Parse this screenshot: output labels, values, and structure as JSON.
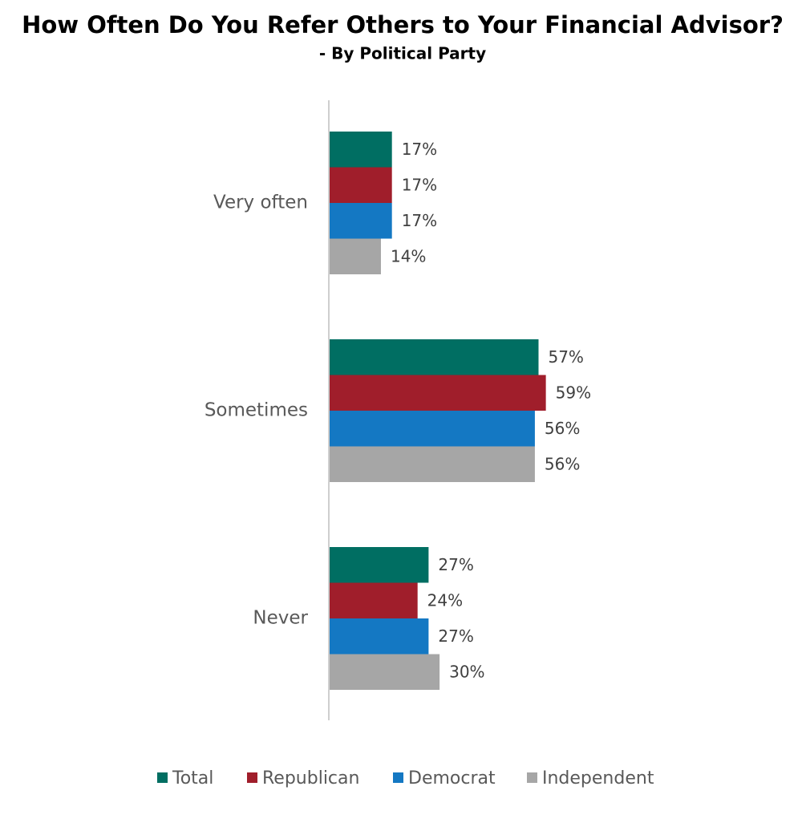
{
  "chart_data": {
    "type": "bar",
    "orientation": "horizontal",
    "title": "How Often Do You Refer Others to Your Financial Advisor?",
    "subtitle": "- By Political Party",
    "categories": [
      "Very often",
      "Sometimes",
      "Never"
    ],
    "series": [
      {
        "name": "Total",
        "color": "#006e62",
        "values": [
          17,
          57,
          27
        ],
        "value_labels": [
          "17%",
          "57%",
          "27%"
        ]
      },
      {
        "name": "Republican",
        "color": "#a01e2b",
        "values": [
          17,
          59,
          24
        ],
        "value_labels": [
          "17%",
          "59%",
          "24%"
        ]
      },
      {
        "name": "Democrat",
        "color": "#1478c3",
        "values": [
          17,
          56,
          27
        ],
        "value_labels": [
          "17%",
          "56%",
          "27%"
        ]
      },
      {
        "name": "Independent",
        "color": "#a6a6a6",
        "values": [
          14,
          56,
          30
        ],
        "value_labels": [
          "14%",
          "56%",
          "30%"
        ]
      }
    ],
    "legend": "bottom"
  }
}
